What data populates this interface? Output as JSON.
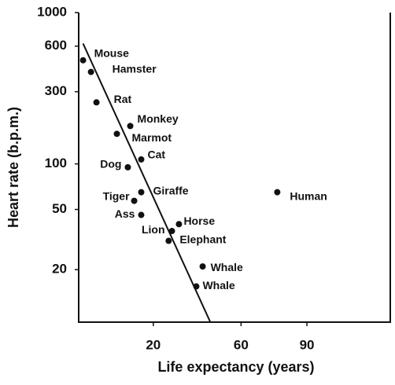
{
  "chart_data": {
    "type": "scatter",
    "x_label": "Life expectancy (years)",
    "y_label": "Heart rate (b.p.m.)",
    "labels": [
      "Mouse",
      "Hamster",
      "Rat",
      "Monkey",
      "Marmot",
      "Cat",
      "Dog",
      "Giraffe",
      "Tiger",
      "Ass",
      "Horse",
      "Lion",
      "Elephant",
      "Whale",
      "Whale",
      "Human"
    ],
    "x": [
      -12,
      -8.4,
      -5.9,
      9.5,
      3.4,
      14.5,
      8.4,
      14.5,
      11.3,
      14.5,
      31.7,
      28.5,
      27,
      42.5,
      39.6,
      76.5
    ],
    "y": [
      484,
      405,
      255,
      178,
      158,
      107,
      95,
      65,
      57,
      46,
      40,
      36,
      31,
      21,
      15.5,
      65
    ],
    "color": "#111111",
    "trend_line": {
      "x": [
        -12,
        46
      ],
      "y": [
        624,
        9
      ]
    },
    "xlim": [
      -14,
      128
    ],
    "xticks": [
      20,
      60,
      90
    ],
    "ylim": [
      9,
      1000
    ],
    "yticks": [
      20,
      50,
      100,
      300,
      600,
      1000
    ],
    "y_scale": "log"
  }
}
